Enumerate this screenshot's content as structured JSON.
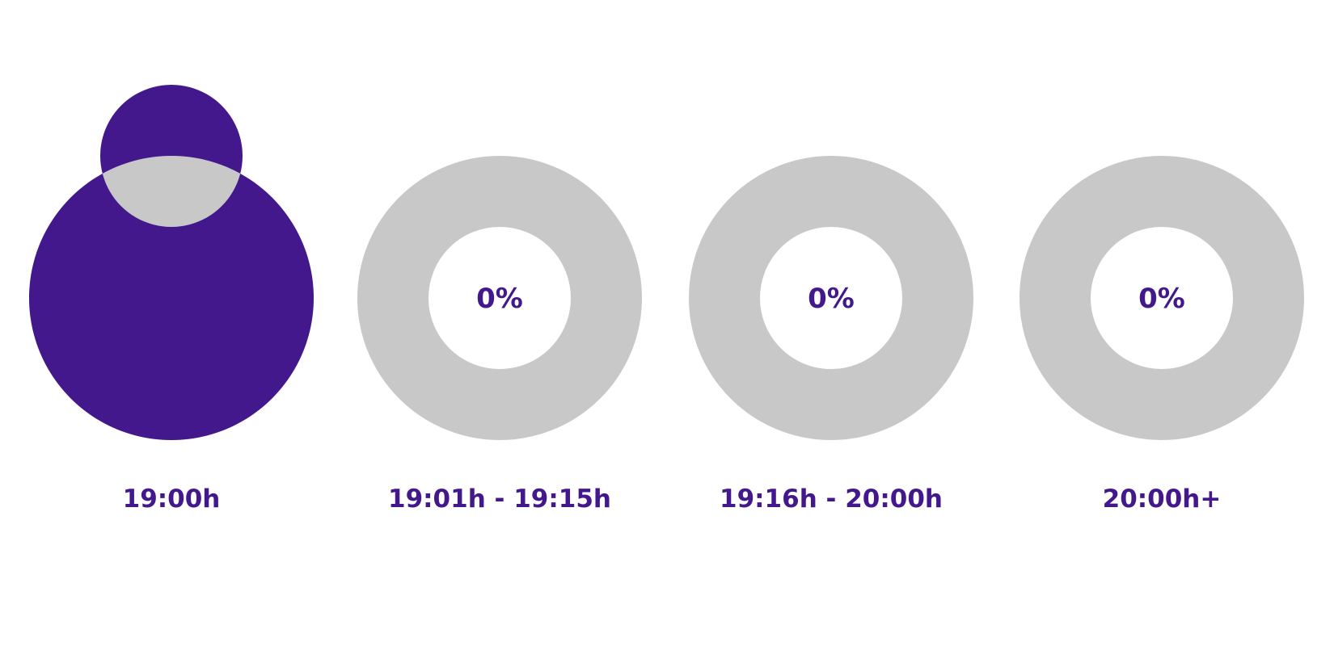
{
  "chart_data": {
    "type": "pie",
    "variant": "donut-gauges",
    "colors": {
      "fill": "#42188c",
      "track": "#c8c8c8",
      "text": "#42188c"
    },
    "gauges": [
      {
        "label": "19:00h",
        "value": 100,
        "value_label": "100%"
      },
      {
        "label": "19:01h - 19:15h",
        "value": 0,
        "value_label": "0%"
      },
      {
        "label": "19:16h - 20:00h",
        "value": 0,
        "value_label": "0%"
      },
      {
        "label": "20:00h+",
        "value": 0,
        "value_label": "0%"
      }
    ]
  }
}
